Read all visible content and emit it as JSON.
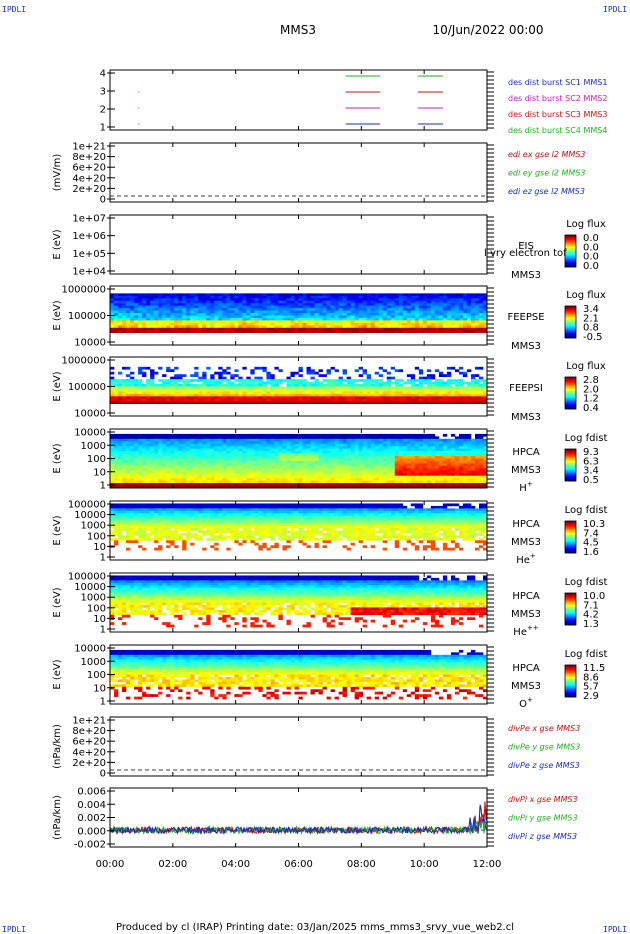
{
  "logo": "IPDLI",
  "header": {
    "mission": "MMS3",
    "date": "10/Jun/2022 00:00"
  },
  "footer": {
    "text": "Produced by cl (IRAP)    Printing date: 03/Jan/2025    mms_mms3_srvy_vue_web2.cl"
  },
  "time_axis": {
    "ticks": [
      "00:00",
      "02:00",
      "04:00",
      "06:00",
      "08:00",
      "10:00",
      "12:00"
    ],
    "range_hours": [
      0,
      12
    ]
  },
  "chart_data": [
    {
      "id": "burst",
      "type": "line",
      "y_ticks": [
        "1",
        "2",
        "3",
        "4"
      ],
      "series": [
        {
          "name": "des dist burst SC1 MMS1",
          "color": "#1a2ec0",
          "level": 1,
          "segments_hours": [
            [
              7.5,
              8.6
            ],
            [
              9.8,
              10.6
            ]
          ],
          "dots_hours": [
            0.9
          ]
        },
        {
          "name": "des dist burst SC2 MMS2",
          "color": "#c020c0",
          "level": 2,
          "segments_hours": [
            [
              7.5,
              8.6
            ],
            [
              9.8,
              10.6
            ]
          ],
          "dots_hours": [
            0.9
          ]
        },
        {
          "name": "des dist burst SC3 MMS3",
          "color": "#d01010",
          "level": 3,
          "segments_hours": [
            [
              7.5,
              8.6
            ],
            [
              9.8,
              10.6
            ]
          ],
          "dots_hours": [
            0.9
          ]
        },
        {
          "name": "des dist burst SC4 MMS4",
          "color": "#20b020",
          "level": 4,
          "segments_hours": [
            [
              7.5,
              8.6
            ],
            [
              9.8,
              10.6
            ]
          ],
          "dots_hours": []
        }
      ]
    },
    {
      "id": "edi",
      "type": "line",
      "ylabel": "(mV/m)",
      "y_ticks": [
        "0",
        "2e+20",
        "4e+20",
        "6e+20",
        "8e+20",
        "1e+21"
      ],
      "series": [
        {
          "name": "edi ex gse l2 MMS3",
          "color": "#d01010"
        },
        {
          "name": "edi ey gse l2 MMS3",
          "color": "#20b020"
        },
        {
          "name": "edi ez gse l2 MMS3",
          "color": "#1a2ec0"
        }
      ]
    },
    {
      "id": "eis",
      "type": "heatmap",
      "ylabel": "E (eV)",
      "y_ticks": [
        "1e+04",
        "1e+05",
        "1e+06",
        "1e+07"
      ],
      "labels": [
        "EIS",
        "MMS3"
      ],
      "overlay_text": "l vry electron tof",
      "colorbar": {
        "title": "Log flux",
        "ticks": [
          "0.0",
          "0.0",
          "0.0",
          "0.0"
        ]
      }
    },
    {
      "id": "feepse",
      "type": "heatmap",
      "ylabel": "E (eV)",
      "y_ticks": [
        "10000",
        "100000",
        "1000000"
      ],
      "labels": [
        "FEEPSE",
        "MMS3"
      ],
      "colorbar": {
        "title": "Log flux",
        "ticks": [
          "3.4",
          "2.1",
          "0.8",
          "-0.5"
        ]
      }
    },
    {
      "id": "feepsi",
      "type": "heatmap",
      "ylabel": "E (eV)",
      "y_ticks": [
        "10000",
        "100000",
        "1000000"
      ],
      "labels": [
        "FEEPSI",
        "MMS3"
      ],
      "colorbar": {
        "title": "Log flux",
        "ticks": [
          "2.8",
          "2.0",
          "1.2",
          "0.4"
        ]
      }
    },
    {
      "id": "hpca_h",
      "type": "heatmap",
      "ylabel": "E (eV)",
      "y_ticks": [
        "1",
        "10",
        "100",
        "1000",
        "10000"
      ],
      "labels": [
        "HPCA",
        "MMS3"
      ],
      "species": "H",
      "species_sup": "+",
      "colorbar": {
        "title": "Log fdist",
        "ticks": [
          "9.3",
          "6.3",
          "3.4",
          "0.5"
        ]
      }
    },
    {
      "id": "hpca_he",
      "type": "heatmap",
      "ylabel": "E (eV)",
      "y_ticks": [
        "1",
        "10",
        "100",
        "1000",
        "10000",
        "100000"
      ],
      "labels": [
        "HPCA",
        "MMS3"
      ],
      "species": "He",
      "species_sup": "+",
      "colorbar": {
        "title": "Log fdist",
        "ticks": [
          "10.3",
          "7.4",
          "4.5",
          "1.6"
        ]
      }
    },
    {
      "id": "hpca_hepp",
      "type": "heatmap",
      "ylabel": "E (eV)",
      "y_ticks": [
        "1",
        "10",
        "100",
        "1000",
        "10000",
        "100000"
      ],
      "labels": [
        "HPCA",
        "MMS3"
      ],
      "species": "He",
      "species_sup": "++",
      "colorbar": {
        "title": "Log fdist",
        "ticks": [
          "10.0",
          "7.1",
          "4.2",
          "1.3"
        ]
      }
    },
    {
      "id": "hpca_o",
      "type": "heatmap",
      "ylabel": "E (eV)",
      "y_ticks": [
        "1",
        "10",
        "100",
        "1000",
        "10000"
      ],
      "labels": [
        "HPCA",
        "MMS3"
      ],
      "species": "O",
      "species_sup": "+",
      "colorbar": {
        "title": "Log fdist",
        "ticks": [
          "11.5",
          "8.6",
          "5.7",
          "2.9"
        ]
      }
    },
    {
      "id": "divpe",
      "type": "line",
      "ylabel": "(nPa/km)",
      "y_ticks": [
        "0",
        "2e+20",
        "4e+20",
        "6e+20",
        "8e+20",
        "1e+21"
      ],
      "series": [
        {
          "name": "divPe x gse MMS3",
          "color": "#d01010"
        },
        {
          "name": "divPe y gse MMS3",
          "color": "#20b020"
        },
        {
          "name": "divPe z gse MMS3",
          "color": "#1a2ec0"
        }
      ]
    },
    {
      "id": "divpi",
      "type": "line",
      "ylabel": "(nPa/km)",
      "y_ticks": [
        "-0.002",
        "0.000",
        "0.002",
        "0.004",
        "0.006"
      ],
      "ylim": [
        -0.003,
        0.0075
      ],
      "series": [
        {
          "name": "divPi x gse MMS3",
          "color": "#d01010"
        },
        {
          "name": "divPi y gse MMS3",
          "color": "#20b020"
        },
        {
          "name": "divPi z gse MMS3",
          "color": "#1a2ec0"
        }
      ]
    }
  ]
}
